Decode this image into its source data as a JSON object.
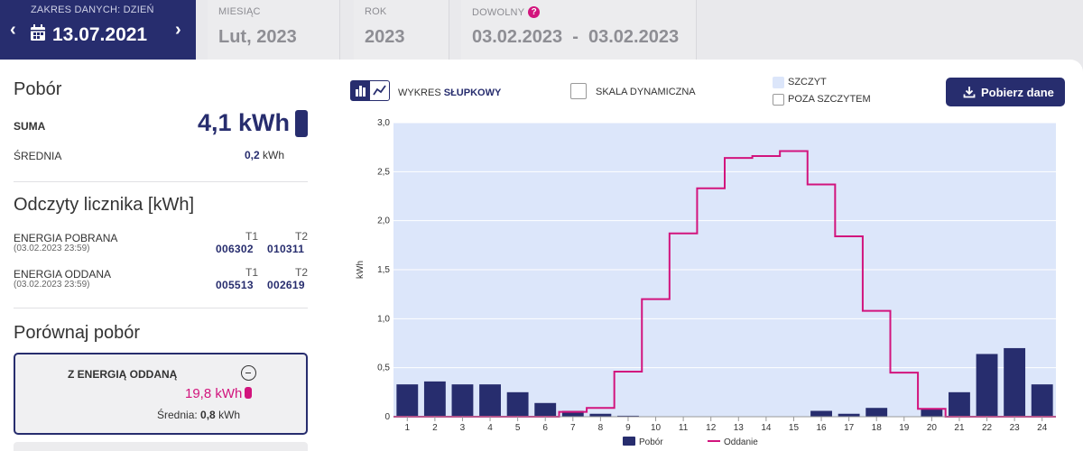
{
  "tabs": {
    "day": {
      "label": "ZAKRES DANYCH: DZIEŃ",
      "value": "13.07.2021"
    },
    "month": {
      "label": "MIESIĄC",
      "value": "Lut, 2023"
    },
    "year": {
      "label": "ROK",
      "value": "2023"
    },
    "custom": {
      "label": "DOWOLNY",
      "help": "?",
      "value": "03.02.2023  -  03.02.2023"
    }
  },
  "consumption": {
    "title": "Pobór",
    "sum_label": "SUMA",
    "sum_value": "4,1 kWh",
    "avg_label": "ŚREDNIA",
    "avg_value": "0,2",
    "avg_unit": "kWh"
  },
  "meter": {
    "title": "Odczyty licznika [kWh]",
    "rows": [
      {
        "label": "ENERGIA POBRANA",
        "date": "(03.02.2023 23:59)",
        "t1_header": "T1",
        "t2_header": "T2",
        "t1": "006302",
        "t2": "010311"
      },
      {
        "label": "ENERGIA ODDANA",
        "date": "(03.02.2023 23:59)",
        "t1_header": "T1",
        "t2_header": "T2",
        "t1": "005513",
        "t2": "002619"
      }
    ]
  },
  "compare": {
    "title": "Porównaj pobór",
    "box_label": "Z ENERGIĄ ODDANĄ",
    "value": "19,8 kWh",
    "avg_label": "Średnia:",
    "avg_value": "0,8",
    "avg_unit": "kWh"
  },
  "toolbar": {
    "chart_type_prefix": "WYKRES",
    "chart_type_value": "SŁUPKOWY",
    "dynamic_scale": "SKALA DYNAMICZNA",
    "peak": "SZCZYT",
    "off_peak": "POZA SZCZYTEM",
    "download": "Pobierz dane"
  },
  "colors": {
    "navy": "#272d6e",
    "magenta": "#d2147d",
    "peak_bg": "#dce6fa"
  },
  "chart_data": {
    "type": "bar",
    "categories": [
      "1",
      "2",
      "3",
      "4",
      "5",
      "6",
      "7",
      "8",
      "9",
      "10",
      "11",
      "12",
      "13",
      "14",
      "15",
      "16",
      "17",
      "18",
      "19",
      "20",
      "21",
      "22",
      "23",
      "24"
    ],
    "ylabel": "kWh",
    "ylim": [
      0,
      3.0
    ],
    "yticks": [
      "0",
      "0,5",
      "1,0",
      "1,5",
      "2,0",
      "2,5",
      "3,0"
    ],
    "grid": true,
    "legend_position": "bottom",
    "series": [
      {
        "name": "Pobór",
        "type": "bar",
        "color": "#272d6e",
        "values": [
          0.33,
          0.36,
          0.33,
          0.33,
          0.25,
          0.14,
          0.06,
          0.03,
          0.01,
          0,
          0,
          0,
          0,
          0,
          0,
          0.06,
          0.03,
          0.09,
          0,
          0.08,
          0.25,
          0.64,
          0.7,
          0.33
        ]
      },
      {
        "name": "Oddanie",
        "type": "step-line",
        "color": "#d2147d",
        "values": [
          0,
          0,
          0,
          0,
          0,
          0,
          0.05,
          0.09,
          0.46,
          1.2,
          1.87,
          2.33,
          2.64,
          2.66,
          2.71,
          2.37,
          1.84,
          1.08,
          0.45,
          0.08,
          0,
          0,
          0,
          0
        ]
      }
    ]
  }
}
